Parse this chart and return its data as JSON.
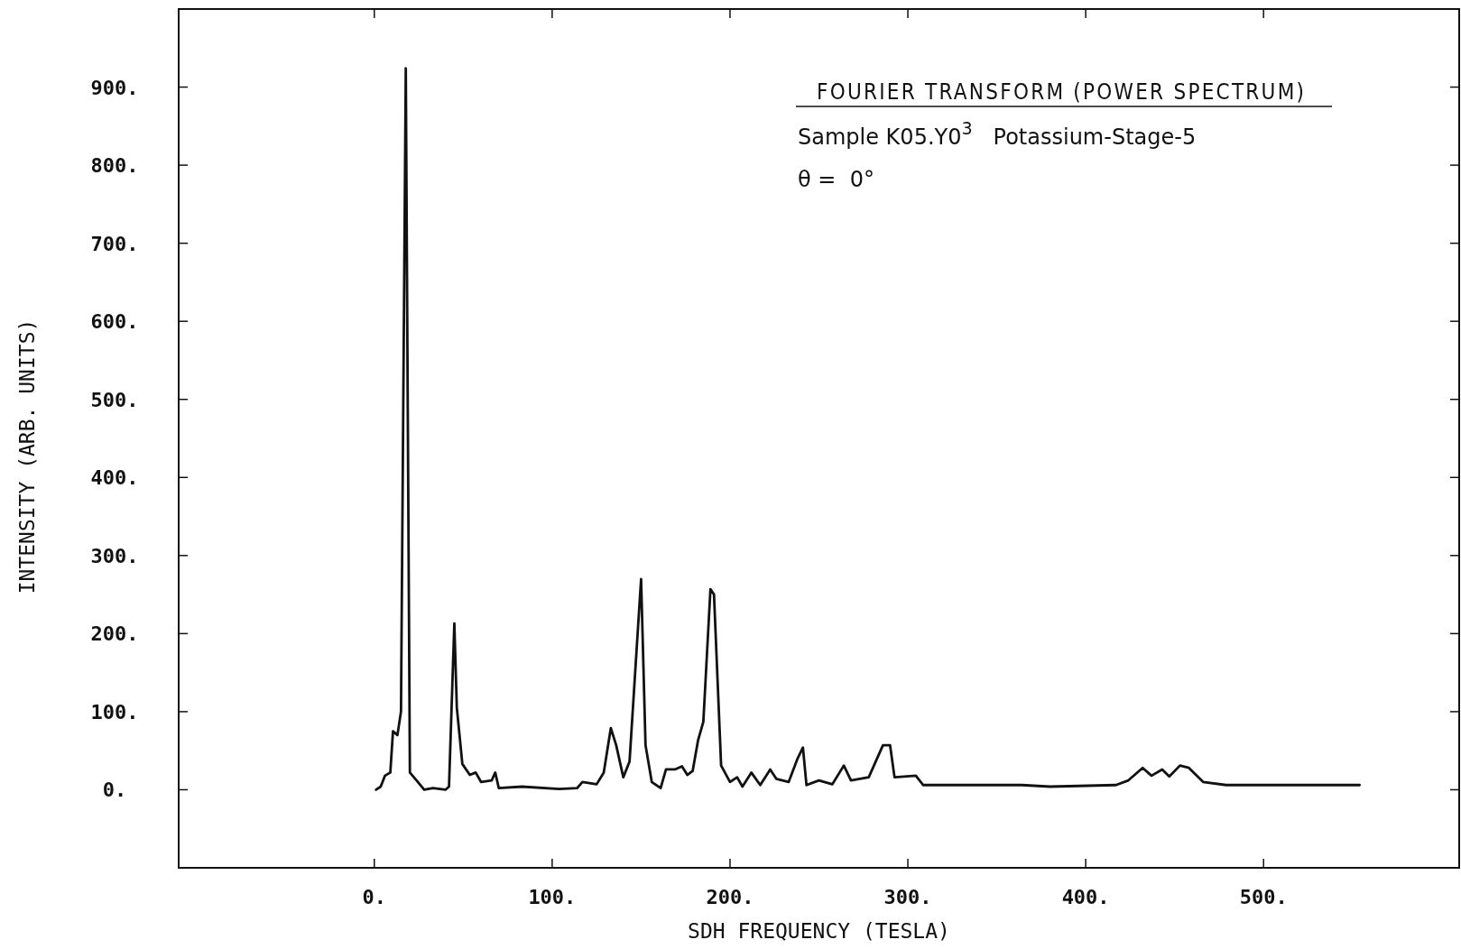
{
  "chart_data": {
    "type": "line",
    "title": "FOURIER TRANSFORM (POWER SPECTRUM)",
    "xlabel": "SDH FREQUENCY (TESLA)",
    "ylabel": "INTENSITY (ARB. UNITS)",
    "annotations": [
      "Sample K05.Y0$^{3}$   Potassium-Stage-5",
      "θ =  0°"
    ],
    "xlim": [
      -110,
      610
    ],
    "ylim": [
      -100,
      1000
    ],
    "xticks": [
      {
        "value": 0,
        "label": "0."
      },
      {
        "value": 100,
        "label": "100."
      },
      {
        "value": 200,
        "label": "200."
      },
      {
        "value": 300,
        "label": "300."
      },
      {
        "value": 400,
        "label": "400."
      },
      {
        "value": 500,
        "label": "500."
      }
    ],
    "yticks": [
      {
        "value": 0,
        "label": "0."
      },
      {
        "value": 100,
        "label": "100."
      },
      {
        "value": 200,
        "label": "200."
      },
      {
        "value": 300,
        "label": "300."
      },
      {
        "value": 400,
        "label": "400."
      },
      {
        "value": 500,
        "label": "500."
      },
      {
        "value": 600,
        "label": "600."
      },
      {
        "value": 700,
        "label": "700."
      },
      {
        "value": 800,
        "label": "800."
      },
      {
        "value": 900,
        "label": "900."
      }
    ],
    "grid": false,
    "marker": "none",
    "line_style": "solid",
    "series": [
      {
        "color": "#111111",
        "x": [
          1,
          3.6,
          6,
          9,
          10.5,
          13,
          15,
          17.7,
          20,
          24.5,
          28,
          33,
          40,
          42,
          45,
          46.4,
          49.5,
          53.7,
          57,
          60,
          66,
          68,
          70,
          83,
          104,
          114,
          117,
          125,
          129,
          133,
          136,
          140,
          143.5,
          150,
          152.5,
          156,
          161,
          164,
          169,
          173,
          176,
          179,
          182,
          185,
          189,
          191,
          195,
          200,
          204,
          207,
          212,
          217,
          222.6,
          226,
          233,
          238,
          241,
          243,
          250,
          257.5,
          264,
          268,
          278,
          286,
          290,
          292.5,
          304.5,
          308.6,
          364,
          380,
          417,
          424,
          432,
          437,
          443,
          447,
          453,
          458,
          466,
          479,
          554
        ],
        "values": [
          0,
          4,
          18,
          22,
          75,
          70,
          100,
          924,
          22,
          10,
          0,
          2,
          0,
          4,
          213,
          105,
          33,
          19,
          22,
          10,
          12,
          22,
          2,
          4,
          1,
          2,
          10,
          7,
          22,
          79,
          57,
          16,
          36,
          270,
          57,
          10,
          2,
          26,
          26,
          30,
          19,
          24,
          63,
          87,
          257,
          250,
          31,
          10,
          16,
          4,
          22,
          6,
          26,
          14,
          10,
          40,
          54,
          6,
          12,
          7,
          31,
          12,
          16,
          57,
          57,
          16,
          18,
          6,
          6,
          4,
          6,
          12,
          28,
          18,
          26,
          17,
          31,
          28,
          10,
          6,
          6
        ]
      }
    ]
  }
}
